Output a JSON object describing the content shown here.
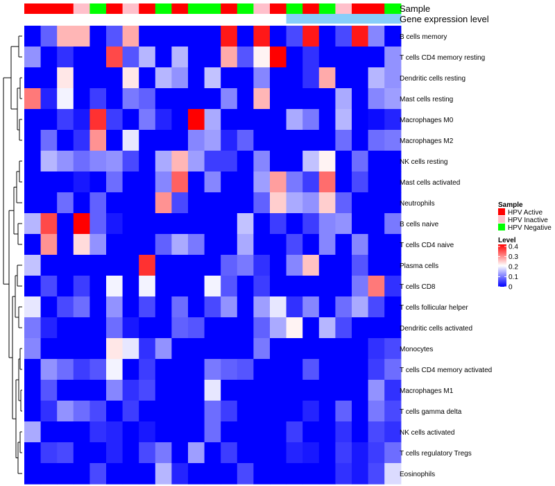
{
  "chart_data": {
    "type": "heatmap",
    "title": "",
    "annotation_labels": [
      "Sample",
      "Gene expression level"
    ],
    "sample_legend": {
      "title": "Sample",
      "entries": [
        {
          "label": "HPV Active",
          "color": "#ff0000"
        },
        {
          "label": "HPV Inactive",
          "color": "#ffc0cb"
        },
        {
          "label": "HPV Negative",
          "color": "#00ff00"
        }
      ]
    },
    "level_legend": {
      "title": "Level",
      "ticks": [
        "0.4",
        "0.3",
        "0.2",
        "0.1",
        "0"
      ],
      "tick_values": [
        0.4,
        0.3,
        0.2,
        0.1,
        0
      ],
      "range": [
        0,
        0.42
      ],
      "colors": {
        "low": "#0000ff",
        "mid": "#ffffff",
        "high": "#ff0000"
      },
      "midpoint": 0.21
    },
    "sample_colors": [
      "#ff0000",
      "#ff0000",
      "#ff0000",
      "#ffc0cb",
      "#00ff00",
      "#ff0000",
      "#ffc0cb",
      "#ff0000",
      "#00ff00",
      "#ff0000",
      "#00ff00",
      "#00ff00",
      "#ff0000",
      "#00ff00",
      "#ffc0cb",
      "#ff0000",
      "#00ff00",
      "#ff0000",
      "#00ff00",
      "#ffc0cb",
      "#ff0000",
      "#ff0000",
      "#00ff00"
    ],
    "expression_colors": [
      "#ffffff",
      "#ffffff",
      "#ffffff",
      "#ffffff",
      "#ffffff",
      "#ffffff",
      "#ffffff",
      "#ffffff",
      "#ffffff",
      "#ffffff",
      "#ffffff",
      "#ffffff",
      "#ffffff",
      "#ffffff",
      "#ffffff",
      "#ffffff",
      "#87cefa",
      "#87cefa",
      "#87cefa",
      "#87cefa",
      "#87cefa",
      "#87cefa",
      "#87cefa"
    ],
    "rows": [
      "B cells memory",
      "T cells CD4 memory resting",
      "Dendritic cells resting",
      "Mast cells resting",
      "Macrophages M0",
      "Macrophages M2",
      "NK cells resting",
      "Mast cells activated",
      "Neutrophils",
      "B cells naive",
      "T cells CD4 naive",
      "Plasma cells",
      "T cells CD8",
      "T cells follicular helper",
      "Dendritic cells activated",
      "Monocytes",
      "T cells CD4 memory activated",
      "Macrophages M1",
      "T cells gamma delta",
      "NK cells activated",
      "T cells regulatory  Tregs",
      "Eosinophils"
    ],
    "values": [
      [
        0,
        0.08,
        0.27,
        0.27,
        0,
        0.07,
        0.28,
        0,
        0,
        0,
        0,
        0,
        0.4,
        0,
        0.4,
        0,
        0.06,
        0.4,
        0,
        0.06,
        0.4,
        0.11,
        0
      ],
      [
        0.12,
        0,
        0.04,
        0,
        0,
        0.36,
        0.07,
        0.15,
        0,
        0.15,
        0,
        0,
        0.28,
        0.07,
        0.22,
        0.42,
        0,
        0.04,
        0,
        0,
        0,
        0,
        0.12
      ],
      [
        0,
        0,
        0.23,
        0,
        0,
        0,
        0.23,
        0,
        0.15,
        0.12,
        0,
        0.16,
        0,
        0,
        0.11,
        0,
        0,
        0.04,
        0.28,
        0,
        0,
        0.15,
        0.12
      ],
      [
        0.32,
        0.03,
        0.2,
        0,
        0.05,
        0,
        0.1,
        0.08,
        0,
        0,
        0,
        0,
        0.11,
        0,
        0.27,
        0,
        0,
        0,
        0,
        0.14,
        0,
        0.11,
        0.13
      ],
      [
        0,
        0,
        0.05,
        0.02,
        0.38,
        0.05,
        0,
        0.1,
        0.03,
        0,
        0.42,
        0.14,
        0,
        0,
        0,
        0,
        0.14,
        0.1,
        0,
        0.15,
        0,
        0.01,
        0.03
      ],
      [
        0,
        0.09,
        0,
        0.04,
        0.3,
        0,
        0.19,
        0,
        0,
        0,
        0.11,
        0.13,
        0.03,
        0.08,
        0,
        0,
        0,
        0,
        0,
        0.09,
        0,
        0.09,
        0.1
      ],
      [
        0,
        0.15,
        0.12,
        0.09,
        0.11,
        0.12,
        0.06,
        0,
        0.14,
        0.27,
        0.13,
        0.05,
        0.05,
        0,
        0.11,
        0,
        0,
        0.16,
        0.22,
        0,
        0.09,
        0,
        0
      ],
      [
        0,
        0,
        0,
        0.02,
        0,
        0.09,
        0,
        0,
        0.11,
        0.34,
        0,
        0.11,
        0,
        0,
        0.13,
        0.29,
        0.1,
        0.05,
        0.33,
        0,
        0.06,
        0,
        0
      ],
      [
        0,
        0,
        0.09,
        0,
        0.08,
        0,
        0,
        0,
        0.3,
        0.06,
        0,
        0,
        0,
        0,
        0.08,
        0.25,
        0.14,
        0.12,
        0.25,
        0.08,
        0,
        0,
        0
      ],
      [
        0.15,
        0.36,
        0,
        0.42,
        0.08,
        0.02,
        0,
        0,
        0,
        0,
        0,
        0,
        0,
        0.16,
        0,
        0.05,
        0,
        0.05,
        0.11,
        0.12,
        0,
        0,
        0.1
      ],
      [
        0,
        0.3,
        0,
        0.24,
        0.12,
        0,
        0,
        0,
        0.08,
        0.14,
        0.1,
        0,
        0,
        0.14,
        0,
        0,
        0.06,
        0,
        0.11,
        0,
        0.11,
        0,
        0
      ],
      [
        0.16,
        0,
        0,
        0,
        0,
        0,
        0,
        0.38,
        0,
        0,
        0,
        0,
        0.08,
        0.1,
        0.04,
        0,
        0.11,
        0.26,
        0,
        0,
        0.07,
        0,
        0
      ],
      [
        0,
        0.06,
        0,
        0.05,
        0,
        0.2,
        0,
        0.2,
        0,
        0,
        0,
        0.2,
        0.07,
        0,
        0.05,
        0,
        0,
        0,
        0,
        0,
        0.1,
        0.32,
        0.04
      ],
      [
        0.19,
        0,
        0.06,
        0.09,
        0,
        0.12,
        0,
        0.06,
        0,
        0.09,
        0,
        0.06,
        0.12,
        0,
        0.13,
        0.19,
        0.04,
        0.11,
        0,
        0.09,
        0.14,
        0.06,
        0
      ],
      [
        0.1,
        0.03,
        0,
        0,
        0,
        0.09,
        0.02,
        0,
        0,
        0.08,
        0.07,
        0,
        0,
        0,
        0.08,
        0.14,
        0.22,
        0,
        0.15,
        0.06,
        0,
        0,
        0
      ],
      [
        0.11,
        0,
        0,
        0,
        0,
        0.23,
        0.19,
        0.04,
        0.12,
        0,
        0,
        0,
        0,
        0,
        0.1,
        0,
        0,
        0,
        0,
        0,
        0,
        0.04,
        0.06
      ],
      [
        0,
        0.12,
        0.09,
        0.05,
        0.07,
        0.2,
        0,
        0.05,
        0,
        0,
        0,
        0.1,
        0.08,
        0.07,
        0,
        0,
        0,
        0.07,
        0,
        0,
        0,
        0.05,
        0.09
      ],
      [
        0,
        0.07,
        0,
        0,
        0,
        0.11,
        0.04,
        0.06,
        0,
        0,
        0,
        0.19,
        0,
        0,
        0,
        0,
        0,
        0,
        0,
        0,
        0,
        0.12,
        0.04
      ],
      [
        0,
        0.04,
        0.12,
        0.09,
        0.06,
        0,
        0.05,
        0,
        0,
        0,
        0,
        0.09,
        0.05,
        0,
        0,
        0,
        0,
        0.03,
        0,
        0.08,
        0,
        0.1,
        0.06
      ],
      [
        0.14,
        0,
        0,
        0,
        0.04,
        0.03,
        0,
        0.02,
        0,
        0,
        0,
        0.09,
        0,
        0,
        0,
        0,
        0.05,
        0,
        0,
        0.04,
        0,
        0.06,
        0.04
      ],
      [
        0,
        0.05,
        0.06,
        0,
        0,
        0.03,
        0,
        0.06,
        0.1,
        0,
        0.13,
        0,
        0.05,
        0,
        0,
        0,
        0.03,
        0.02,
        0,
        0.05,
        0.02,
        0.05,
        0.09
      ],
      [
        0,
        0,
        0,
        0,
        0.06,
        0,
        0,
        0,
        0.15,
        0.03,
        0,
        0,
        0,
        0.06,
        0,
        0,
        0,
        0,
        0,
        0.04,
        0.02,
        0.06,
        0.18
      ]
    ]
  }
}
